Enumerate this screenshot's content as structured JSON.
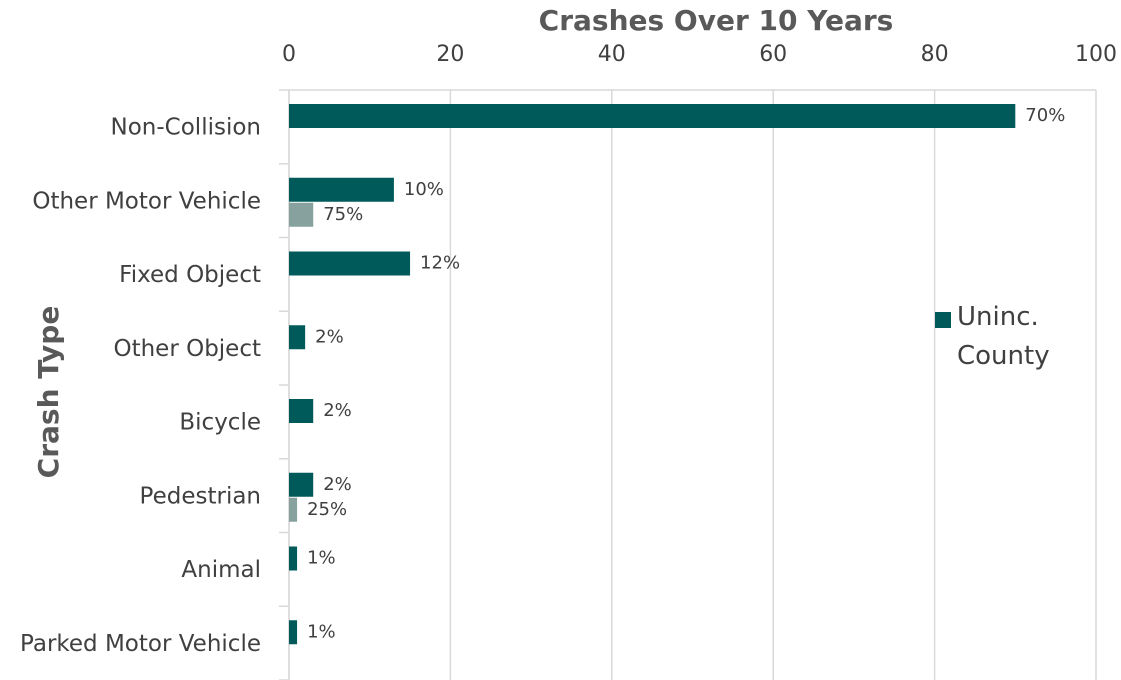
{
  "chart_data": {
    "type": "bar",
    "orientation": "horizontal",
    "title": "Crashes Over 10 Years",
    "y_label": "Crash Type",
    "categories": [
      "Non-Collision",
      "Other Motor Vehicle",
      "Fixed Object",
      "Other Object",
      "Bicycle",
      "Pedestrian",
      "Animal",
      "Parked Motor Vehicle"
    ],
    "series": [
      {
        "name": "Uninc. County",
        "color": "#005a5a",
        "values": [
          90,
          13,
          15,
          2,
          3,
          3,
          1,
          1
        ],
        "value_labels": [
          "70%",
          "10%",
          "12%",
          "2%",
          "2%",
          "2%",
          "1%",
          "1%"
        ]
      },
      {
        "color": "#86a19e",
        "values": [
          null,
          3,
          null,
          null,
          null,
          1,
          null,
          null
        ],
        "value_labels": [
          null,
          "75%",
          null,
          null,
          null,
          "25%",
          null,
          null
        ]
      }
    ],
    "xlim": [
      0,
      100
    ],
    "xticks": [
      0,
      20,
      40,
      60,
      80,
      100
    ],
    "grid": true,
    "legend": "right"
  }
}
